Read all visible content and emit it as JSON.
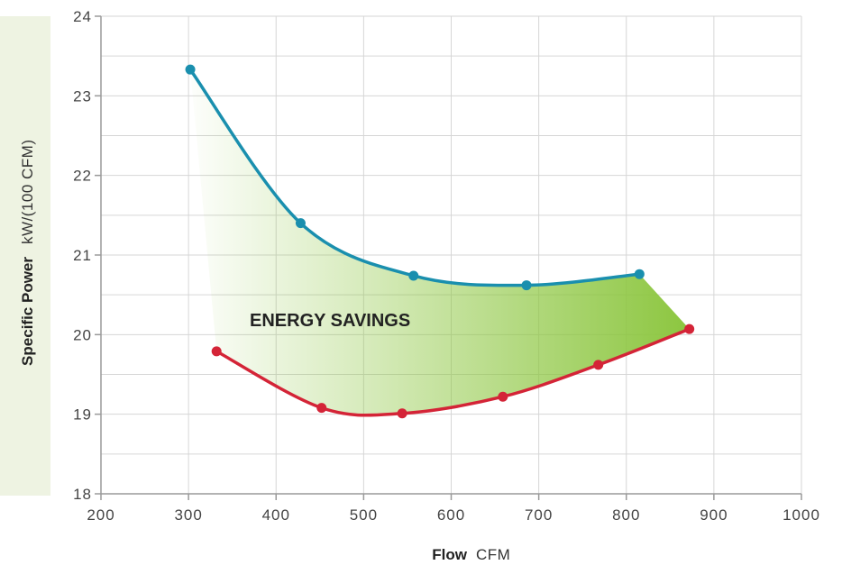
{
  "chart_data": {
    "type": "line",
    "xlabel": "Flow",
    "xunit": "CFM",
    "ylabel": "Specific Power",
    "yunit": "kW/(100 CFM)",
    "xlim": [
      200,
      1000
    ],
    "ylim": [
      18,
      24
    ],
    "xticks": [
      200,
      300,
      400,
      500,
      600,
      700,
      800,
      900,
      1000
    ],
    "yticks": [
      18,
      19,
      20,
      21,
      22,
      23,
      24
    ],
    "grid": true,
    "annotation": "ENERGY SAVINGS",
    "colors": {
      "upper": "#1a8fae",
      "lower": "#d42437",
      "fill": "#8cc63f",
      "ylabel_band": "#eef3e2"
    },
    "series": [
      {
        "x": [
          302,
          428,
          557,
          686,
          815
        ],
        "y": [
          23.33,
          21.4,
          20.74,
          20.62,
          20.76
        ]
      },
      {
        "x": [
          332,
          452,
          544,
          659,
          768,
          872
        ],
        "y": [
          19.79,
          19.08,
          19.01,
          19.22,
          19.62,
          20.07
        ]
      }
    ]
  }
}
